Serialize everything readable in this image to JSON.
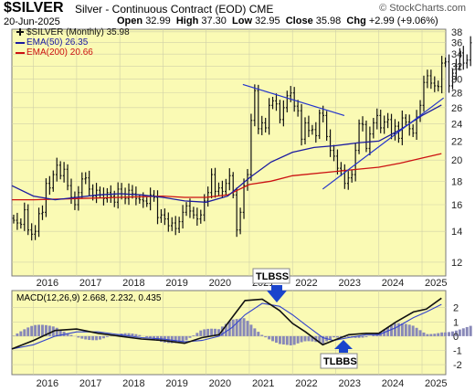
{
  "header": {
    "symbol": "$SILVER",
    "description": "Silver - Continuous Contract (EOD) CME",
    "credit": "© StockCharts.com",
    "date": "20-Jun-2025",
    "open_label": "Open",
    "open": "32.99",
    "high_label": "High",
    "high": "37.30",
    "low_label": "Low",
    "low": "32.95",
    "close_label": "Close",
    "close": "35.98",
    "chg_label": "Chg",
    "chg": "+2.99 (+9.06%)"
  },
  "colors": {
    "pane_bg": "#fafab4",
    "bars": "#111111",
    "ema50": "#1a1aa0",
    "ema200": "#cc1111",
    "trendline": "#2233cc",
    "macd": "#111111",
    "signal": "#3344cc",
    "hist": "#8888b8",
    "annotation_bg": "#ffffff",
    "arrow": "#1a44cc"
  },
  "chart_data": [
    {
      "type": "ohlc",
      "legend": [
        {
          "text": "$SILVER (Monthly) 35.98",
          "color": "#111111"
        },
        {
          "text": "EMA(50) 26.35",
          "color": "#1a1aa0"
        },
        {
          "text": "EMA(200) 20.66",
          "color": "#cc1111"
        }
      ],
      "x_tick_labels": [
        "2016",
        "2017",
        "2018",
        "2019",
        "2020",
        "2021",
        "2022",
        "2023",
        "2024",
        "2025"
      ],
      "x_tick_values": [
        2016.0,
        2017.0,
        2018.0,
        2019.0,
        2020.0,
        2021.0,
        2022.0,
        2023.0,
        2024.0,
        2025.0
      ],
      "xlim": [
        2015.5,
        2025.55
      ],
      "y_scale": "log",
      "ylim": [
        11.2,
        38.5
      ],
      "y_ticks": [
        12,
        14,
        16,
        18,
        20,
        22,
        24,
        26,
        28,
        30,
        32,
        34,
        36,
        38
      ],
      "close_values_monthly_from_2015_07": [
        14.8,
        14.6,
        14.5,
        15.6,
        14.1,
        13.8,
        14.0,
        15.3,
        15.4,
        17.8,
        17.4,
        18.6,
        19.5,
        18.5,
        19.1,
        17.6,
        16.6,
        16.0,
        17.0,
        18.2,
        18.3,
        17.3,
        16.7,
        17.2,
        16.8,
        16.5,
        17.0,
        16.7,
        16.2,
        17.3,
        16.9,
        16.5,
        17.2,
        16.9,
        16.5,
        16.4,
        16.3,
        16.1,
        16.8,
        16.6,
        15.0,
        15.2,
        14.9,
        14.4,
        14.6,
        14.2,
        14.7,
        15.4,
        15.9,
        15.5,
        15.2,
        14.9,
        15.2,
        16.3,
        17.0,
        18.6,
        17.1,
        17.4,
        17.1,
        17.8,
        18.5,
        16.8,
        14.1,
        15.4,
        17.6,
        18.6,
        24.4,
        28.3,
        23.4,
        24.1,
        23.5,
        26.3,
        26.9,
        26.5,
        24.5,
        26.0,
        27.6,
        28.0,
        26.2,
        25.6,
        22.2,
        24.1,
        23.2,
        23.3,
        22.6,
        25.3,
        25.0,
        22.5,
        21.0,
        20.4,
        19.2,
        19.0,
        17.8,
        18.3,
        18.6,
        21.0,
        24.0,
        23.9,
        21.2,
        22.8,
        24.1,
        25.0,
        23.5,
        24.2,
        24.5,
        22.8,
        23.7,
        22.3,
        24.7,
        24.2,
        23.4,
        22.9,
        24.8,
        26.3,
        29.5,
        30.5,
        29.4,
        29.0,
        28.9,
        32.5,
        32.7,
        29.0,
        30.9,
        32.0,
        34.2,
        32.5,
        33.0,
        35.98
      ],
      "ema50_points": [
        [
          2015.5,
          17.6
        ],
        [
          2016.0,
          16.7
        ],
        [
          2016.5,
          16.4
        ],
        [
          2017.0,
          16.6
        ],
        [
          2017.5,
          16.8
        ],
        [
          2018.0,
          16.9
        ],
        [
          2018.5,
          16.8
        ],
        [
          2019.0,
          16.6
        ],
        [
          2019.5,
          16.3
        ],
        [
          2020.0,
          16.2
        ],
        [
          2020.5,
          16.7
        ],
        [
          2021.0,
          18.3
        ],
        [
          2021.5,
          19.8
        ],
        [
          2022.0,
          20.8
        ],
        [
          2022.5,
          21.3
        ],
        [
          2023.0,
          21.5
        ],
        [
          2023.5,
          21.8
        ],
        [
          2024.0,
          22.0
        ],
        [
          2024.5,
          23.3
        ],
        [
          2025.0,
          25.0
        ],
        [
          2025.45,
          26.35
        ]
      ],
      "ema200_points": [
        [
          2015.5,
          16.4
        ],
        [
          2016.0,
          16.4
        ],
        [
          2017.0,
          16.5
        ],
        [
          2018.0,
          16.6
        ],
        [
          2019.0,
          16.7
        ],
        [
          2019.5,
          16.6
        ],
        [
          2020.0,
          16.6
        ],
        [
          2020.5,
          16.8
        ],
        [
          2021.0,
          17.7
        ],
        [
          2021.5,
          18.0
        ],
        [
          2022.0,
          18.5
        ],
        [
          2023.0,
          18.9
        ],
        [
          2024.0,
          19.3
        ],
        [
          2024.5,
          19.7
        ],
        [
          2025.0,
          20.2
        ],
        [
          2025.45,
          20.66
        ]
      ],
      "trendlines": [
        {
          "from": [
            2020.85,
            29.2
          ],
          "to": [
            2023.2,
            25.0
          ]
        },
        {
          "from": [
            2022.7,
            17.3
          ],
          "to": [
            2025.5,
            27.3
          ]
        }
      ]
    },
    {
      "type": "line",
      "title": "MACD(12,26,9) 2.668, 2.232, 0.435",
      "x_tick_labels": [
        "2016",
        "2017",
        "2018",
        "2019",
        "2020",
        "2021",
        "2022",
        "2023",
        "2024",
        "2025"
      ],
      "y_ticks": [
        -2,
        -1,
        0,
        1,
        2
      ],
      "ylim": [
        -2.7,
        3.2
      ],
      "series": [
        {
          "name": "MACD",
          "points": [
            [
              2015.5,
              -0.9
            ],
            [
              2016.0,
              -0.3
            ],
            [
              2016.5,
              0.4
            ],
            [
              2017.0,
              0.5
            ],
            [
              2017.5,
              0.2
            ],
            [
              2018.0,
              0.0
            ],
            [
              2018.5,
              -0.2
            ],
            [
              2019.0,
              -0.3
            ],
            [
              2019.5,
              -0.5
            ],
            [
              2019.9,
              -0.1
            ],
            [
              2020.3,
              0.1
            ],
            [
              2020.6,
              1.3
            ],
            [
              2020.9,
              2.5
            ],
            [
              2021.3,
              2.6
            ],
            [
              2021.7,
              1.8
            ],
            [
              2022.0,
              0.9
            ],
            [
              2022.3,
              0.3
            ],
            [
              2022.7,
              -0.6
            ],
            [
              2022.95,
              -0.3
            ],
            [
              2023.3,
              0.1
            ],
            [
              2023.7,
              0.2
            ],
            [
              2024.0,
              0.2
            ],
            [
              2024.4,
              1.0
            ],
            [
              2024.8,
              1.7
            ],
            [
              2025.1,
              1.9
            ],
            [
              2025.45,
              2.668
            ]
          ]
        },
        {
          "name": "Signal",
          "points": [
            [
              2015.5,
              -0.9
            ],
            [
              2016.0,
              -0.6
            ],
            [
              2016.5,
              0.0
            ],
            [
              2017.0,
              0.3
            ],
            [
              2017.5,
              0.3
            ],
            [
              2018.0,
              0.1
            ],
            [
              2018.5,
              -0.1
            ],
            [
              2019.0,
              -0.2
            ],
            [
              2019.5,
              -0.4
            ],
            [
              2019.9,
              -0.3
            ],
            [
              2020.3,
              0.0
            ],
            [
              2020.6,
              0.6
            ],
            [
              2020.9,
              1.5
            ],
            [
              2021.3,
              2.3
            ],
            [
              2021.7,
              2.1
            ],
            [
              2022.0,
              1.5
            ],
            [
              2022.3,
              0.8
            ],
            [
              2022.7,
              -0.1
            ],
            [
              2022.95,
              -0.3
            ],
            [
              2023.3,
              -0.1
            ],
            [
              2023.7,
              0.1
            ],
            [
              2024.0,
              0.1
            ],
            [
              2024.4,
              0.6
            ],
            [
              2024.8,
              1.3
            ],
            [
              2025.1,
              1.7
            ],
            [
              2025.45,
              2.232
            ]
          ]
        }
      ]
    }
  ],
  "annotations": [
    {
      "text": "TLBSS",
      "arrow": "down"
    },
    {
      "text": "TLBBS",
      "arrow": "up"
    }
  ]
}
